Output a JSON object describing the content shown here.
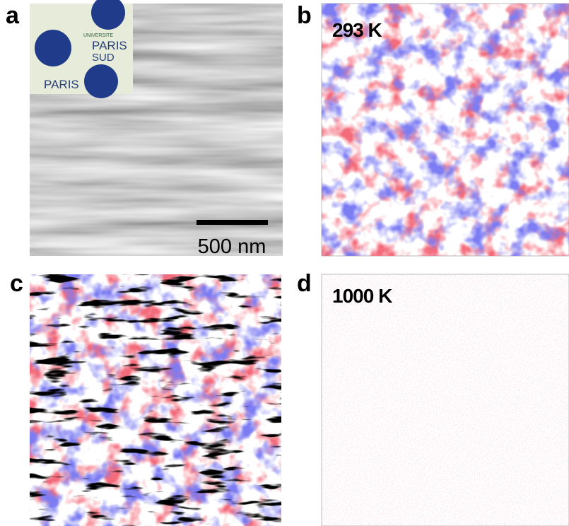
{
  "panels": [
    {
      "label": "a",
      "logo": {
        "lines": [
          "UNIVERSITE",
          "PARIS",
          "SUD"
        ]
      },
      "scale_bar": "500 nm"
    },
    {
      "label": "b",
      "annotation": "293 K"
    },
    {
      "label": "c"
    },
    {
      "label": "d",
      "annotation": "1000 K"
    }
  ]
}
